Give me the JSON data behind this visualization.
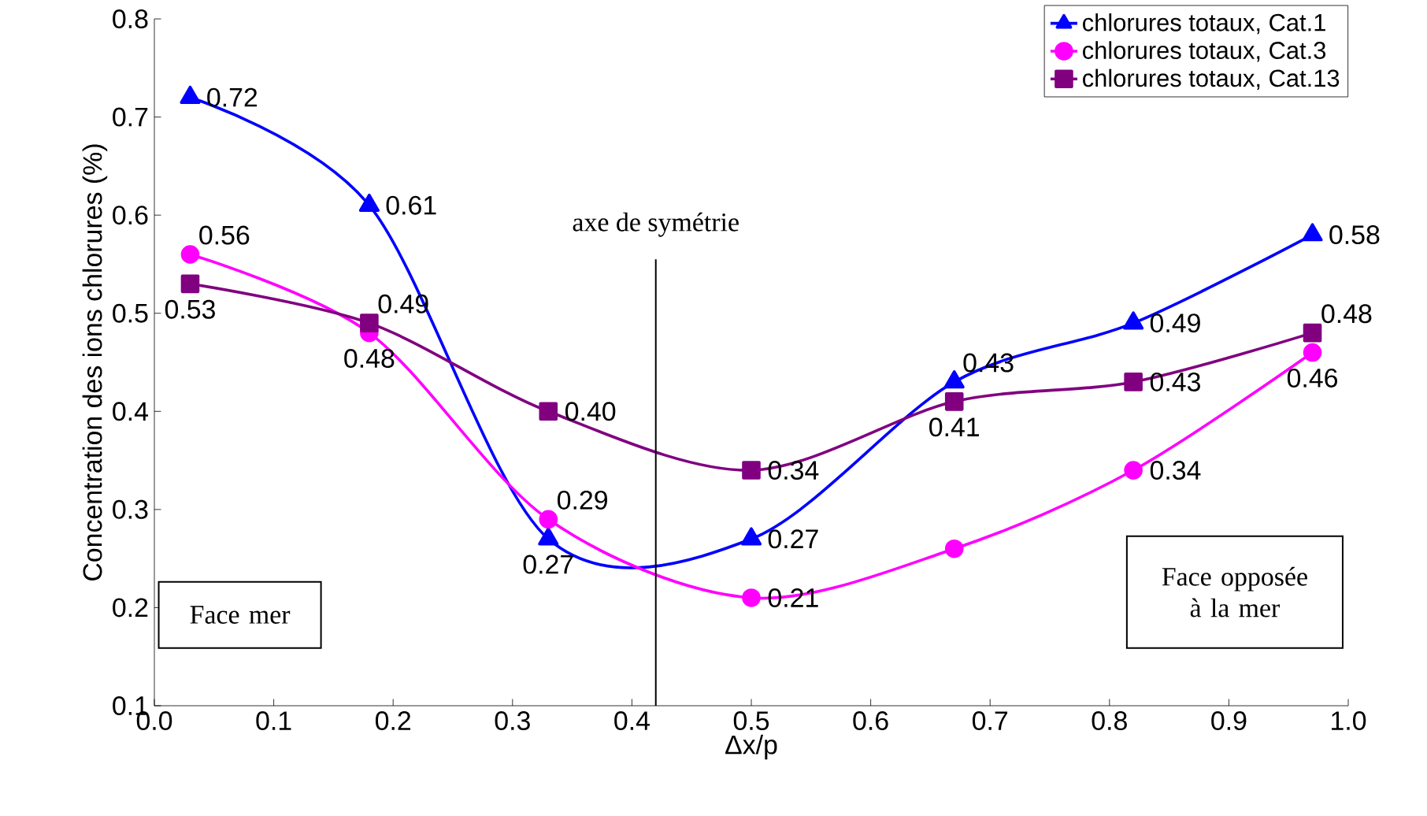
{
  "chart_data": {
    "type": "line",
    "xlabel": "Δx/p",
    "ylabel": "Concentration des ions chlorures (%)",
    "x": [
      0.03,
      0.18,
      0.33,
      0.5,
      0.67,
      0.82,
      0.97
    ],
    "series": [
      {
        "name": "chlorures totaux, Cat.1",
        "color": "#0000ff",
        "marker": "triangle",
        "values": [
          0.72,
          0.61,
          0.27,
          0.27,
          0.43,
          0.49,
          0.58
        ],
        "value_labels": [
          "0.72",
          "0.61",
          "0.27",
          "0.27",
          "0.43",
          "0.49",
          "0.58"
        ]
      },
      {
        "name": "chlorures totaux, Cat.3",
        "color": "#ff00ff",
        "marker": "circle",
        "values": [
          0.56,
          0.48,
          0.29,
          0.21,
          0.26,
          0.34,
          0.46
        ],
        "value_labels": [
          "0.56",
          "0.48",
          "0.29",
          "0.21",
          null,
          "0.34",
          "0.46"
        ]
      },
      {
        "name": "chlorures totaux, Cat.13",
        "color": "#800080",
        "marker": "square",
        "values": [
          0.53,
          0.49,
          0.4,
          0.34,
          0.41,
          0.43,
          0.48
        ],
        "value_labels": [
          "0.53",
          "0.49",
          "0.40",
          "0.34",
          "0.41",
          "0.43",
          "0.48"
        ]
      }
    ],
    "xlim": [
      0.0,
      1.0
    ],
    "ylim": [
      0.1,
      0.8
    ],
    "xticks": [
      {
        "value": 0.0,
        "label": "0.0"
      },
      0.1,
      0.2,
      0.3,
      0.4,
      0.5,
      0.6,
      0.7,
      0.8,
      0.9,
      {
        "value": 1.0,
        "label": "1.0"
      }
    ],
    "yticks": [
      0.1,
      0.2,
      0.3,
      0.4,
      0.5,
      0.6,
      0.7,
      0.8
    ],
    "ref_lines": [
      {
        "axis": "x",
        "value": 0.42,
        "label": "axe de symétrie",
        "color": "#000000"
      }
    ],
    "annotations": [
      "Face mer",
      "Face opposée à la mer"
    ],
    "legend": "top right",
    "grid": false
  }
}
